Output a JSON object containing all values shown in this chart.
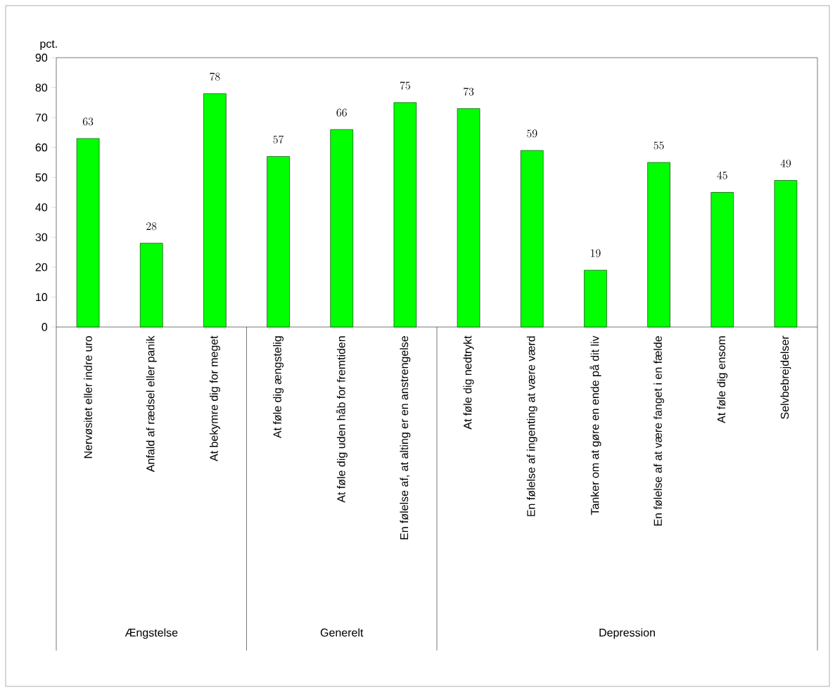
{
  "chart_data": {
    "type": "bar",
    "ylabel": "pct.",
    "categories": [
      "Nervøsitet eller indre uro",
      "Anfald af rædsel eller panik",
      "At bekymre dig for meget",
      "At føle dig ængstelig",
      "At føle dig uden håb for fremtiden",
      "En følelse af, at alting er en anstrengelse",
      "At føle dig nedtrykt",
      "En følelse af ingenting at være værd",
      "Tanker om at gøre en ende på dit liv",
      "En følelse af at være fanget i en fælde",
      "At føle dig ensom",
      "Selvbebrejdelser"
    ],
    "values": [
      63,
      28,
      78,
      57,
      66,
      75,
      73,
      59,
      19,
      55,
      45,
      49
    ],
    "color": "#00ff00",
    "data_labels": true,
    "ylim": [
      0,
      90
    ],
    "yticks": [
      0,
      10,
      20,
      30,
      40,
      50,
      60,
      70,
      80,
      90
    ],
    "grid": false,
    "annotations": [
      "Ængstelse",
      "Generelt",
      "Depression"
    ]
  }
}
